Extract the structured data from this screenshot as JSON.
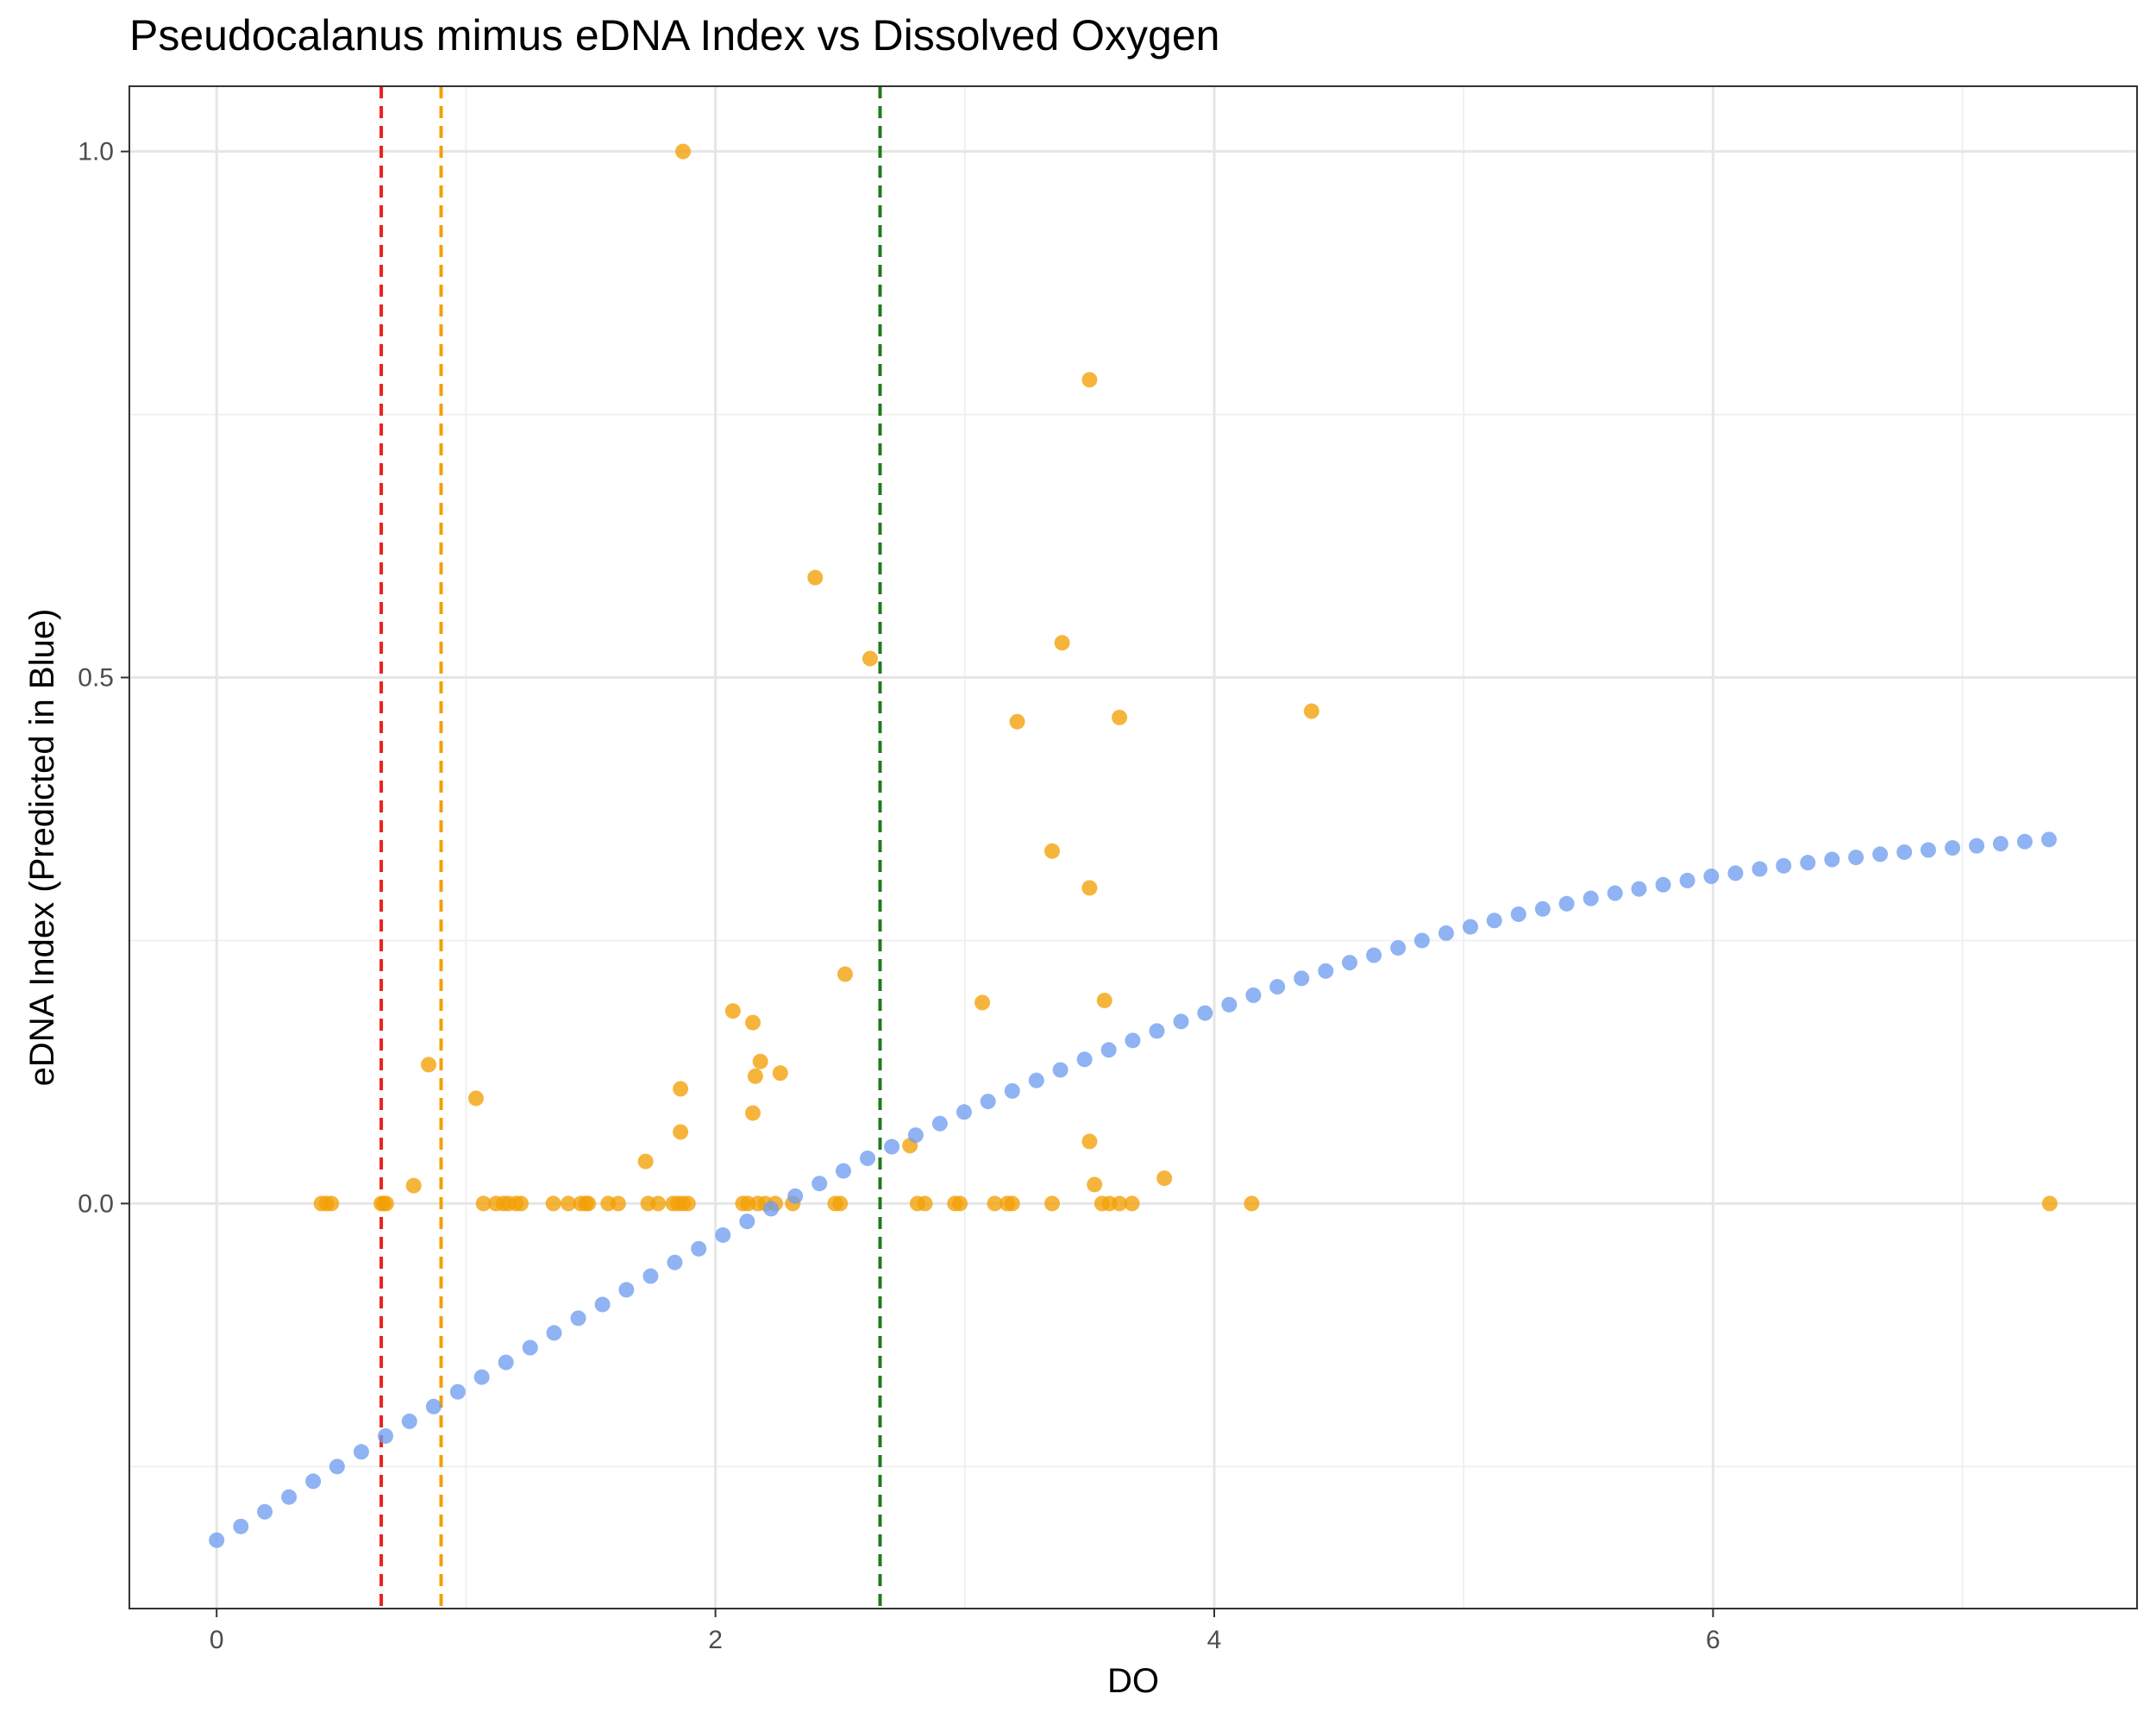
{
  "chart_data": {
    "type": "scatter",
    "title": "Pseudocalanus mimus eDNA Index vs Dissolved Oxygen",
    "xlabel": "DO",
    "ylabel": "eDNA Index (Predicted in Blue)",
    "xlim": [
      -0.35,
      7.7
    ],
    "ylim": [
      -0.385,
      1.062
    ],
    "xticks": [
      0,
      2,
      4,
      6
    ],
    "xtick_labels": [
      "0",
      "2",
      "4",
      "6"
    ],
    "yticks": [
      0.0,
      0.5,
      1.0
    ],
    "ytick_labels": [
      "0.0",
      "0.5",
      "1.0"
    ],
    "grid": true,
    "legend": "none",
    "vlines": [
      {
        "x": 0.66,
        "color": "#e8221d",
        "style": "dashed"
      },
      {
        "x": 0.9,
        "color": "#f2a007",
        "style": "dashed"
      },
      {
        "x": 2.66,
        "color": "#1f7a1f",
        "style": "dashed"
      }
    ],
    "series": [
      {
        "color": "#f2a007",
        "points": [
          [
            0.42,
            0.0
          ],
          [
            0.44,
            0.0
          ],
          [
            0.46,
            0.0
          ],
          [
            0.66,
            0.0
          ],
          [
            0.67,
            0.0
          ],
          [
            0.68,
            0.0
          ],
          [
            0.79,
            0.017
          ],
          [
            0.85,
            0.132
          ],
          [
            1.04,
            0.1
          ],
          [
            1.07,
            0.0
          ],
          [
            1.12,
            0.0
          ],
          [
            1.15,
            0.0
          ],
          [
            1.17,
            0.0
          ],
          [
            1.2,
            0.0
          ],
          [
            1.22,
            0.0
          ],
          [
            1.35,
            0.0
          ],
          [
            1.41,
            0.0
          ],
          [
            1.46,
            0.0
          ],
          [
            1.48,
            0.0
          ],
          [
            1.49,
            0.0
          ],
          [
            1.57,
            0.0
          ],
          [
            1.61,
            0.0
          ],
          [
            1.72,
            0.04
          ],
          [
            1.73,
            0.0
          ],
          [
            1.77,
            0.0
          ],
          [
            1.83,
            0.0
          ],
          [
            1.85,
            0.0
          ],
          [
            1.86,
            0.109
          ],
          [
            1.86,
            0.068
          ],
          [
            1.87,
            1.0
          ],
          [
            1.87,
            0.0
          ],
          [
            1.89,
            0.0
          ],
          [
            2.07,
            0.183
          ],
          [
            2.11,
            0.0
          ],
          [
            2.13,
            0.0
          ],
          [
            2.15,
            0.172
          ],
          [
            2.15,
            0.086
          ],
          [
            2.16,
            0.121
          ],
          [
            2.17,
            0.0
          ],
          [
            2.18,
            0.135
          ],
          [
            2.2,
            0.0
          ],
          [
            2.24,
            0.0
          ],
          [
            2.26,
            0.124
          ],
          [
            2.31,
            0.0
          ],
          [
            2.4,
            0.595
          ],
          [
            2.48,
            0.0
          ],
          [
            2.5,
            0.0
          ],
          [
            2.52,
            0.218
          ],
          [
            2.62,
            0.518
          ],
          [
            2.78,
            0.055
          ],
          [
            2.81,
            0.0
          ],
          [
            2.84,
            0.0
          ],
          [
            2.96,
            0.0
          ],
          [
            2.98,
            0.0
          ],
          [
            3.07,
            0.191
          ],
          [
            3.12,
            0.0
          ],
          [
            3.17,
            0.0
          ],
          [
            3.19,
            0.0
          ],
          [
            3.21,
            0.458
          ],
          [
            3.35,
            0.335
          ],
          [
            3.35,
            0.0
          ],
          [
            3.39,
            0.533
          ],
          [
            3.5,
            0.783
          ],
          [
            3.5,
            0.059
          ],
          [
            3.5,
            0.3
          ],
          [
            3.52,
            0.018
          ],
          [
            3.55,
            0.0
          ],
          [
            3.56,
            0.193
          ],
          [
            3.58,
            0.0
          ],
          [
            3.62,
            0.462
          ],
          [
            3.62,
            0.0
          ],
          [
            3.67,
            0.0
          ],
          [
            3.8,
            0.024
          ],
          [
            4.15,
            0.0
          ],
          [
            4.39,
            0.468
          ],
          [
            7.35,
            0.0
          ]
        ]
      },
      {
        "color": "#6f9ef0",
        "points": [
          [
            0.0,
            -0.32
          ],
          [
            0.097,
            -0.307
          ],
          [
            0.193,
            -0.293
          ],
          [
            0.29,
            -0.279
          ],
          [
            0.387,
            -0.264
          ],
          [
            0.483,
            -0.25
          ],
          [
            0.58,
            -0.236
          ],
          [
            0.677,
            -0.221
          ],
          [
            0.773,
            -0.207
          ],
          [
            0.87,
            -0.193
          ],
          [
            0.967,
            -0.179
          ],
          [
            1.063,
            -0.165
          ],
          [
            1.16,
            -0.151
          ],
          [
            1.257,
            -0.137
          ],
          [
            1.353,
            -0.123
          ],
          [
            1.45,
            -0.109
          ],
          [
            1.547,
            -0.096
          ],
          [
            1.643,
            -0.082
          ],
          [
            1.74,
            -0.069
          ],
          [
            1.837,
            -0.056
          ],
          [
            1.933,
            -0.043
          ],
          [
            2.03,
            -0.03
          ],
          [
            2.127,
            -0.017
          ],
          [
            2.223,
            -0.005
          ],
          [
            2.32,
            0.007
          ],
          [
            2.417,
            0.019
          ],
          [
            2.513,
            0.031
          ],
          [
            2.61,
            0.043
          ],
          [
            2.707,
            0.054
          ],
          [
            2.803,
            0.065
          ],
          [
            2.9,
            0.076
          ],
          [
            2.997,
            0.087
          ],
          [
            3.093,
            0.097
          ],
          [
            3.19,
            0.107
          ],
          [
            3.287,
            0.117
          ],
          [
            3.383,
            0.127
          ],
          [
            3.48,
            0.137
          ],
          [
            3.577,
            0.146
          ],
          [
            3.673,
            0.155
          ],
          [
            3.77,
            0.164
          ],
          [
            3.867,
            0.173
          ],
          [
            3.963,
            0.181
          ],
          [
            4.06,
            0.189
          ],
          [
            4.157,
            0.198
          ],
          [
            4.253,
            0.206
          ],
          [
            4.35,
            0.214
          ],
          [
            4.447,
            0.221
          ],
          [
            4.543,
            0.229
          ],
          [
            4.64,
            0.236
          ],
          [
            4.737,
            0.243
          ],
          [
            4.833,
            0.25
          ],
          [
            4.93,
            0.257
          ],
          [
            5.027,
            0.263
          ],
          [
            5.123,
            0.269
          ],
          [
            5.22,
            0.275
          ],
          [
            5.317,
            0.28
          ],
          [
            5.413,
            0.285
          ],
          [
            5.51,
            0.29
          ],
          [
            5.607,
            0.295
          ],
          [
            5.703,
            0.299
          ],
          [
            5.8,
            0.303
          ],
          [
            5.897,
            0.307
          ],
          [
            5.993,
            0.311
          ],
          [
            6.09,
            0.314
          ],
          [
            6.187,
            0.318
          ],
          [
            6.283,
            0.321
          ],
          [
            6.38,
            0.324
          ],
          [
            6.477,
            0.327
          ],
          [
            6.573,
            0.329
          ],
          [
            6.67,
            0.332
          ],
          [
            6.767,
            0.334
          ],
          [
            6.863,
            0.336
          ],
          [
            6.96,
            0.338
          ],
          [
            7.057,
            0.34
          ],
          [
            7.153,
            0.342
          ],
          [
            7.25,
            0.344
          ],
          [
            7.347,
            0.346
          ]
        ]
      }
    ]
  }
}
